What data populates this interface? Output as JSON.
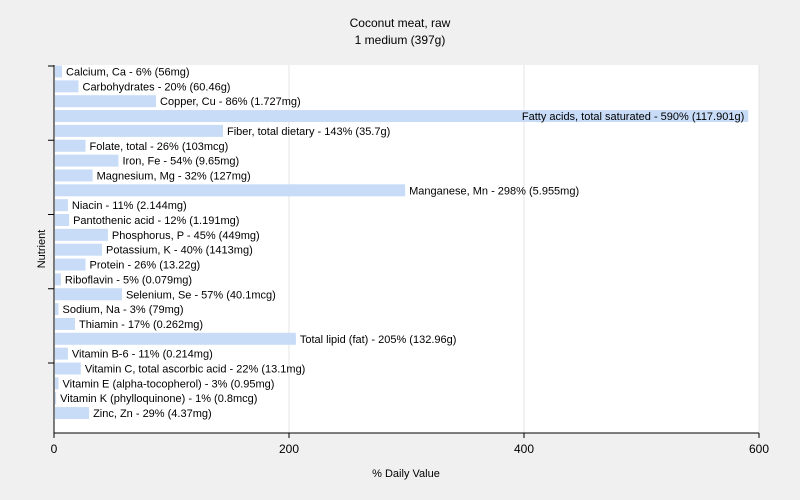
{
  "chart_data": {
    "type": "bar",
    "orientation": "horizontal",
    "title": "Coconut meat, raw",
    "subtitle": "1 medium (397g)",
    "xlabel": "% Daily Value",
    "ylabel": "Nutrient",
    "xlim": [
      0,
      600
    ],
    "xticks": [
      "0",
      "200",
      "400",
      "600"
    ],
    "grid": true,
    "colors": {
      "bar": "#c8dcf8",
      "plot_bg": "#ffffff",
      "page_bg": "#f0f0f0",
      "grid": "#e4e4e4"
    },
    "categories": [
      "Calcium, Ca",
      "Carbohydrates",
      "Copper, Cu",
      "Fatty acids, total saturated",
      "Fiber, total dietary",
      "Folate, total",
      "Iron, Fe",
      "Magnesium, Mg",
      "Manganese, Mn",
      "Niacin",
      "Pantothenic acid",
      "Phosphorus, P",
      "Potassium, K",
      "Protein",
      "Riboflavin",
      "Selenium, Se",
      "Sodium, Na",
      "Thiamin",
      "Total lipid (fat)",
      "Vitamin B-6",
      "Vitamin C, total ascorbic acid",
      "Vitamin E (alpha-tocopherol)",
      "Vitamin K (phylloquinone)",
      "Zinc, Zn"
    ],
    "values": [
      6,
      20,
      86,
      590,
      143,
      26,
      54,
      32,
      298,
      11,
      12,
      45,
      40,
      26,
      5,
      57,
      3,
      17,
      205,
      11,
      22,
      3,
      1,
      29
    ],
    "labels": [
      "Calcium, Ca - 6% (56mg)",
      "Carbohydrates - 20% (60.46g)",
      "Copper, Cu - 86% (1.727mg)",
      "Fatty acids, total saturated - 590% (117.901g)",
      "Fiber, total dietary - 143% (35.7g)",
      "Folate, total - 26% (103mcg)",
      "Iron, Fe - 54% (9.65mg)",
      "Magnesium, Mg - 32% (127mg)",
      "Manganese, Mn - 298% (5.955mg)",
      "Niacin - 11% (2.144mg)",
      "Pantothenic acid - 12% (1.191mg)",
      "Phosphorus, P - 45% (449mg)",
      "Potassium, K - 40% (1413mg)",
      "Protein - 26% (13.22g)",
      "Riboflavin - 5% (0.079mg)",
      "Selenium, Se - 57% (40.1mcg)",
      "Sodium, Na - 3% (79mg)",
      "Thiamin - 17% (0.262mg)",
      "Total lipid (fat) - 205% (132.96g)",
      "Vitamin B-6 - 11% (0.214mg)",
      "Vitamin C, total ascorbic acid - 22% (13.1mg)",
      "Vitamin E (alpha-tocopherol) - 3% (0.95mg)",
      "Vitamin K (phylloquinone) - 1% (0.8mcg)",
      "Zinc, Zn - 29% (4.37mg)"
    ]
  }
}
